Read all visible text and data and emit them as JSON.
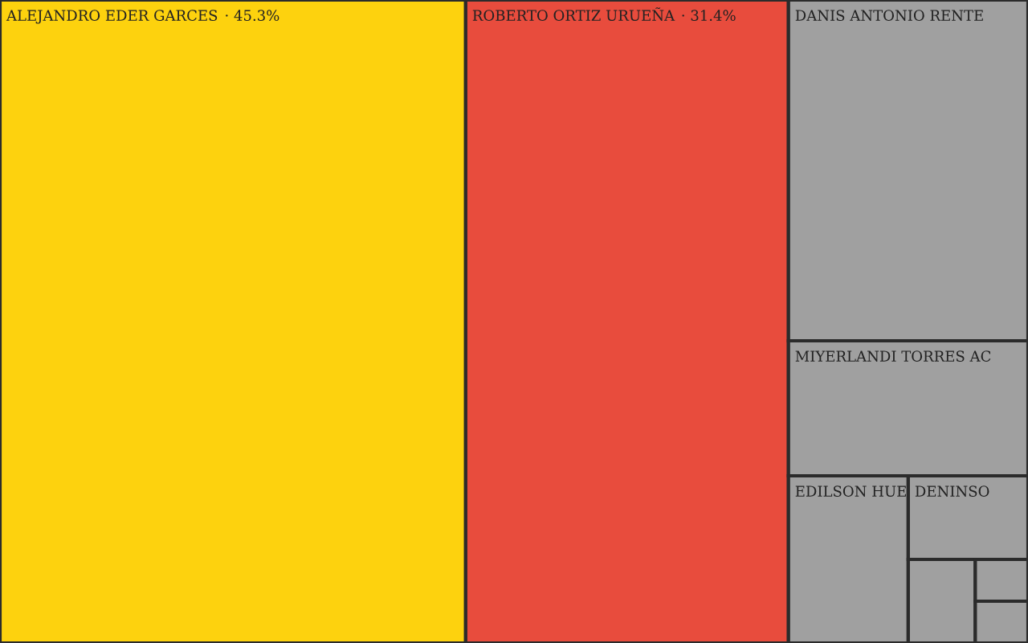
{
  "chart_data": {
    "type": "other",
    "categories": [
      "ALEJANDRO EDER GARCES",
      "ROBERTO ORTIZ URUEÑA",
      "DANIS ANTONIO RENTE",
      "MIYERLANDI TORRES AC",
      "EDILSON HUE",
      "DENINSO",
      null,
      null,
      null
    ],
    "values": [
      45.3,
      31.4,
      null,
      null,
      null,
      null,
      null,
      null,
      null
    ],
    "value_labels": [
      "· 45.3%",
      "· 31.4%",
      null,
      null,
      null,
      null,
      null,
      null,
      null
    ],
    "colors": [
      "#fdd20e",
      "#e84c3d",
      "#a0a0a0",
      "#a0a0a0",
      "#a0a0a0",
      "#a0a0a0",
      "#a0a0a0",
      "#a0a0a0",
      "#a0a0a0"
    ]
  }
}
